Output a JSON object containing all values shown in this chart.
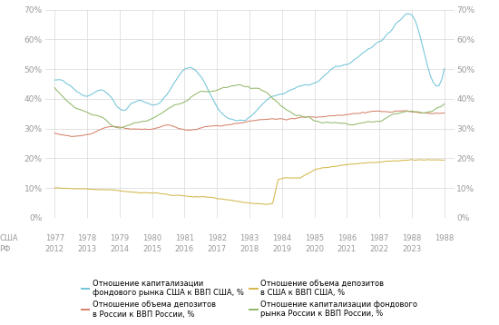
{
  "colors": {
    "usa_stock": "#72C4D8",
    "usa_deposit": "#D4B84A",
    "rf_deposit": "#D4826A",
    "rf_stock": "#92B86A"
  },
  "legend": [
    {
      "label": "Отношение капитализации\nфондового рынка США к ВВП США, %",
      "color": "#72C4D8"
    },
    {
      "label": "Отношение объема депозитов\nв США к ВВП США, %",
      "color": "#D4B84A"
    },
    {
      "label": "Отношение объема депозитов\nв России к ВВП России, %",
      "color": "#D4826A"
    },
    {
      "label": "Отношение капитализации фондового\nрынка России к ВВП России, %",
      "color": "#92B86A"
    }
  ],
  "usa_label": "США",
  "rf_label": "РФ",
  "usa_years": [
    "1977",
    "1978",
    "1979",
    "1980",
    "1981",
    "1982",
    "1983",
    "1984",
    "1985",
    "1986",
    "1987",
    "1988"
  ],
  "rf_years": [
    "2012",
    "2013",
    "2014",
    "2015",
    "2016",
    "2017",
    "2018",
    "2019",
    "2020",
    "2021",
    "2022",
    "2023"
  ],
  "background_color": "#ffffff",
  "grid_color": "#d8d8d8",
  "tick_color": "#999999",
  "ylim": [
    0.0,
    0.7
  ],
  "yticks": [
    0.0,
    0.1,
    0.2,
    0.3,
    0.4,
    0.5,
    0.6,
    0.7
  ]
}
